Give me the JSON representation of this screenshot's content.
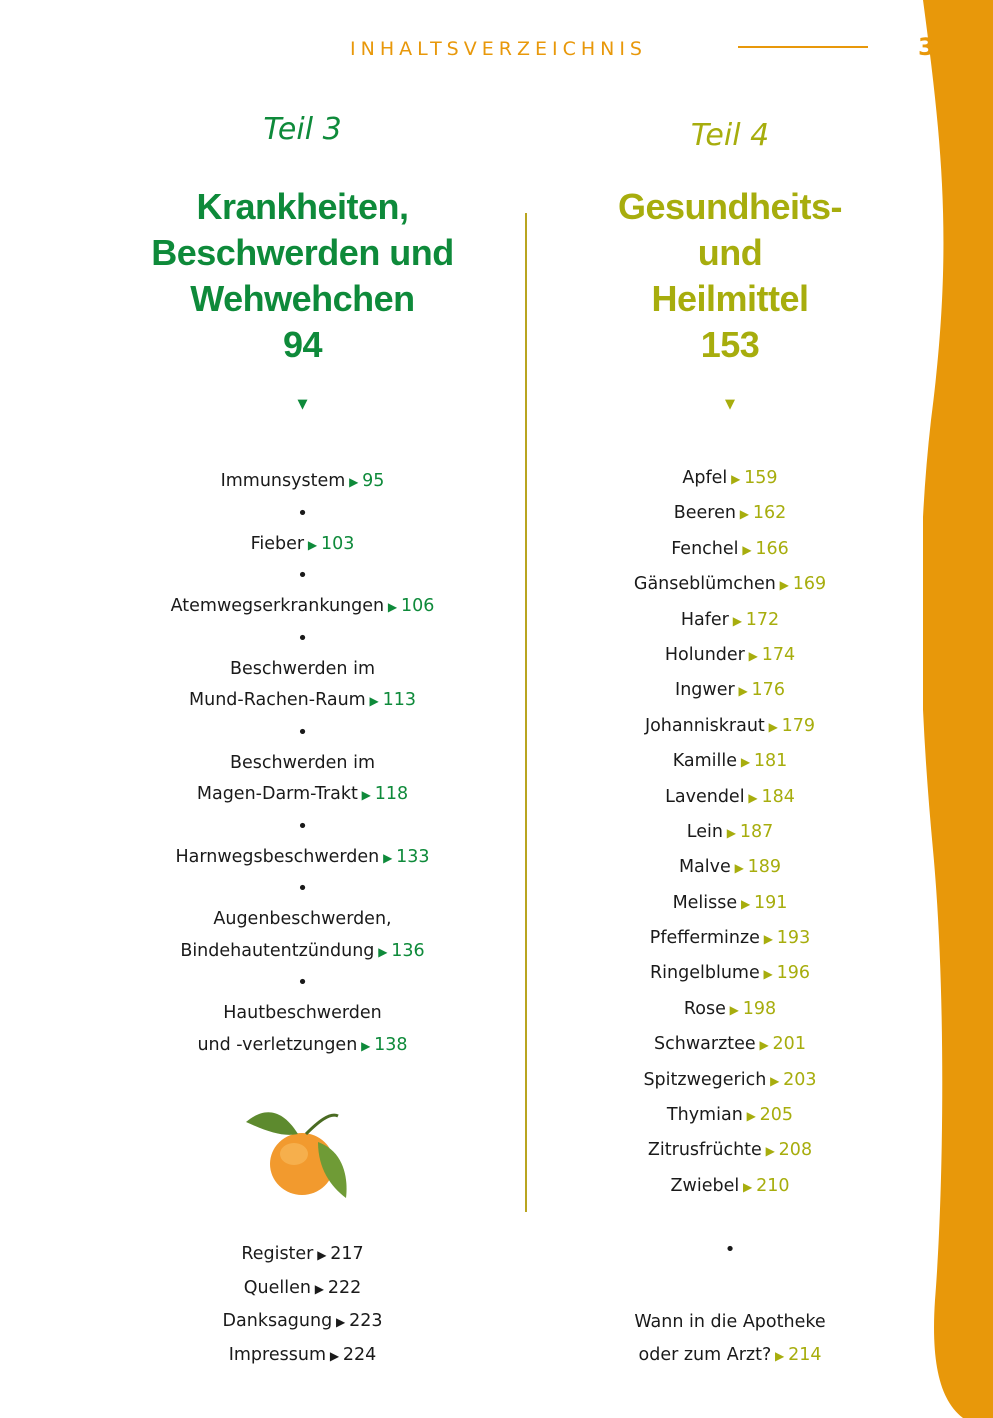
{
  "header": {
    "title": "INHALTSVERZEICHNIS",
    "page_number": "3"
  },
  "left": {
    "teil": "Teil 3",
    "heading_lines": [
      "Krankheiten,",
      "Beschwerden und",
      "Wehwehchen",
      "94"
    ],
    "entries": [
      {
        "lines": [
          "Immunsystem"
        ],
        "page": "95"
      },
      {
        "lines": [
          "Fieber"
        ],
        "page": "103"
      },
      {
        "lines": [
          "Atemwegserkrankungen"
        ],
        "page": "106"
      },
      {
        "lines": [
          "Beschwerden im",
          "Mund-Rachen-Raum"
        ],
        "page": "113"
      },
      {
        "lines": [
          "Beschwerden im",
          "Magen-Darm-Trakt"
        ],
        "page": "118"
      },
      {
        "lines": [
          "Harnwegsbeschwerden"
        ],
        "page": "133"
      },
      {
        "lines": [
          "Augenbeschwerden,",
          "Bindehautentzündung"
        ],
        "page": "136"
      },
      {
        "lines": [
          "Hautbeschwerden",
          "und -verletzungen"
        ],
        "page": "138"
      }
    ],
    "appendix": [
      {
        "label": "Register",
        "page": "217"
      },
      {
        "label": "Quellen",
        "page": "222"
      },
      {
        "label": "Danksagung",
        "page": "223"
      },
      {
        "label": "Impressum",
        "page": "224"
      }
    ]
  },
  "right": {
    "teil": "Teil 4",
    "heading_lines": [
      "Gesundheits-",
      "und",
      "Heilmittel",
      "153"
    ],
    "entries": [
      {
        "label": "Apfel",
        "page": "159"
      },
      {
        "label": "Beeren",
        "page": "162"
      },
      {
        "label": "Fenchel",
        "page": "166"
      },
      {
        "label": "Gänseblümchen",
        "page": "169"
      },
      {
        "label": "Hafer",
        "page": "172"
      },
      {
        "label": "Holunder",
        "page": "174"
      },
      {
        "label": "Ingwer",
        "page": "176"
      },
      {
        "label": "Johanniskraut",
        "page": "179"
      },
      {
        "label": "Kamille",
        "page": "181"
      },
      {
        "label": "Lavendel",
        "page": "184"
      },
      {
        "label": "Lein",
        "page": "187"
      },
      {
        "label": "Malve",
        "page": "189"
      },
      {
        "label": "Melisse",
        "page": "191"
      },
      {
        "label": "Pfefferminze",
        "page": "193"
      },
      {
        "label": "Ringelblume",
        "page": "196"
      },
      {
        "label": "Rose",
        "page": "198"
      },
      {
        "label": "Schwarztee",
        "page": "201"
      },
      {
        "label": "Spitzwegerich",
        "page": "203"
      },
      {
        "label": "Thymian",
        "page": "205"
      },
      {
        "label": "Zitrusfrüchte",
        "page": "208"
      },
      {
        "label": "Zwiebel",
        "page": "210"
      }
    ],
    "extra": {
      "lines": [
        "Wann in die Apotheke",
        "oder zum Arzt?"
      ],
      "page": "214"
    }
  },
  "colors": {
    "accent_orange": "#e8980a",
    "green": "#0e8a3a",
    "olive": "#a7ad0d"
  }
}
